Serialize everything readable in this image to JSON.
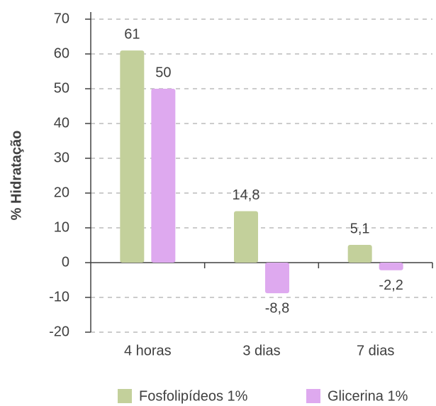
{
  "chart_data": {
    "type": "bar",
    "y_label": "% Hidratação",
    "categories": [
      "4 horas",
      "3 dias",
      "7 dias"
    ],
    "series": [
      {
        "name": "Fosfolipídeos 1%",
        "color": "#c3d09b",
        "values": [
          61,
          14.8,
          5.1
        ],
        "value_labels": [
          "61",
          "14,8",
          "5,1"
        ]
      },
      {
        "name": "Glicerina 1%",
        "color": "#dea9ef",
        "values": [
          50,
          -8.8,
          -2.2
        ],
        "value_labels": [
          "50",
          "-8,8",
          "-2,2"
        ]
      }
    ],
    "ylim": [
      -20,
      70
    ],
    "yticks": [
      -20,
      -10,
      0,
      10,
      20,
      30,
      40,
      50,
      60,
      70
    ],
    "grid": true,
    "legend": "bottom"
  }
}
